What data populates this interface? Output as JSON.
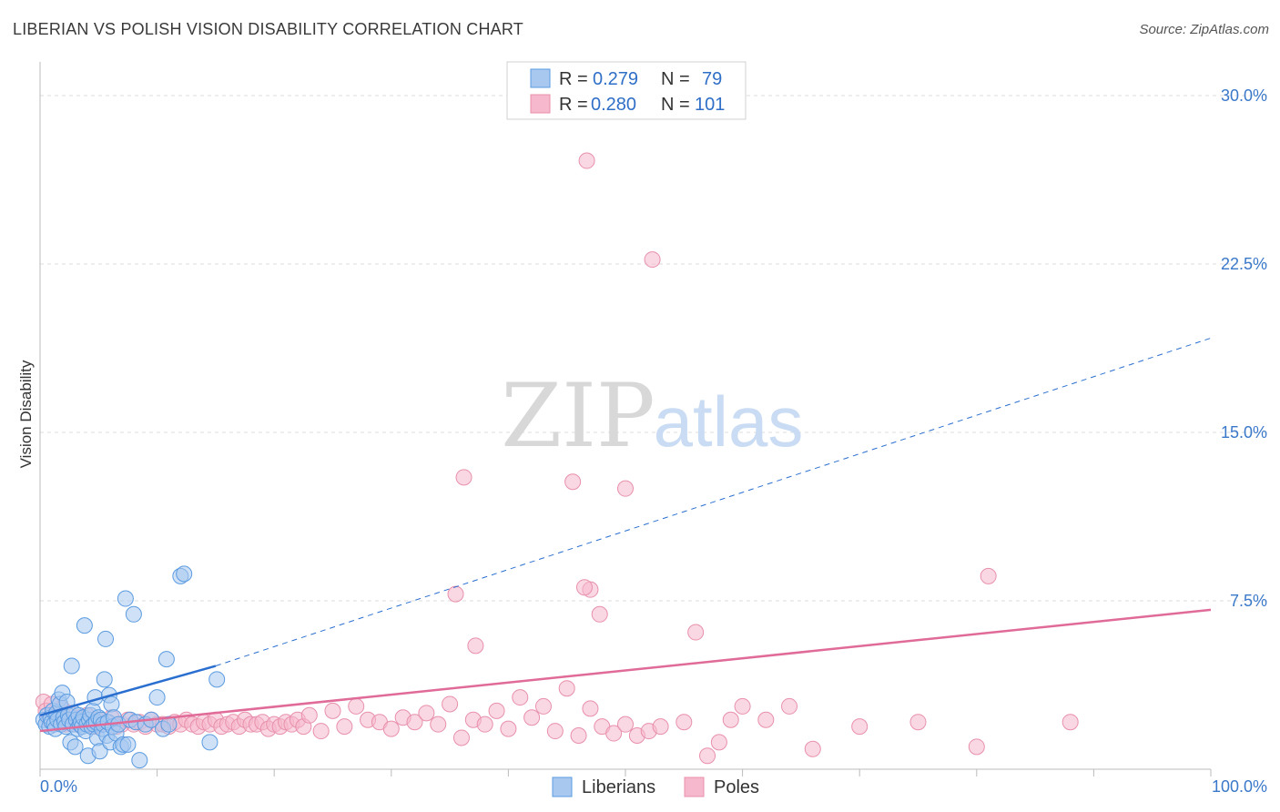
{
  "title": "LIBERIAN VS POLISH VISION DISABILITY CORRELATION CHART",
  "source": "Source: ZipAtlas.com",
  "watermark": {
    "zip": "ZIP",
    "atlas": "atlas"
  },
  "colors": {
    "liberians_fill": "#a8c8f0",
    "liberians_stroke": "#5b9be0",
    "liberians_line": "#2a6fd0",
    "poles_fill": "#f6b8cc",
    "poles_stroke": "#e890ab",
    "poles_line": "#e06a98",
    "grid": "#dddddd",
    "tick_text": "#3a78c9"
  },
  "legend": {
    "r_label": "R =",
    "n_label": "N =",
    "liberians": {
      "r": "0.279",
      "n": "79"
    },
    "poles": {
      "r": "0.280",
      "n": "101"
    }
  },
  "chart_data": {
    "type": "scatter",
    "title": "LIBERIAN VS POLISH VISION DISABILITY CORRELATION CHART",
    "xlabel": "",
    "ylabel": "Vision Disability",
    "xlim": [
      0,
      100
    ],
    "ylim": [
      0,
      31.5
    ],
    "x_tick_labels": [
      "0.0%",
      "100.0%"
    ],
    "y_ticks": [
      7.5,
      15.0,
      22.5,
      30.0
    ],
    "y_tick_labels": [
      "7.5%",
      "15.0%",
      "22.5%",
      "30.0%"
    ],
    "grid": true,
    "series": [
      {
        "name": "Liberians",
        "r": 0.279,
        "n": 79,
        "trend": {
          "x0": 0,
          "y0": 2.4,
          "x1": 15,
          "y1": 4.6,
          "dashed_to_x": 100,
          "dashed_to_y": 19.2
        },
        "points": [
          [
            0.3,
            2.2
          ],
          [
            0.5,
            2.0
          ],
          [
            0.6,
            2.4
          ],
          [
            0.8,
            1.9
          ],
          [
            0.9,
            2.3
          ],
          [
            1.0,
            2.1
          ],
          [
            1.1,
            2.6
          ],
          [
            1.2,
            2.0
          ],
          [
            1.3,
            1.8
          ],
          [
            1.4,
            2.5
          ],
          [
            1.5,
            2.2
          ],
          [
            1.6,
            3.1
          ],
          [
            1.7,
            2.9
          ],
          [
            1.8,
            2.0
          ],
          [
            1.9,
            3.4
          ],
          [
            2.0,
            2.3
          ],
          [
            2.1,
            2.1
          ],
          [
            2.2,
            1.9
          ],
          [
            2.3,
            3.0
          ],
          [
            2.4,
            2.4
          ],
          [
            2.5,
            2.2
          ],
          [
            2.6,
            1.2
          ],
          [
            2.7,
            4.6
          ],
          [
            2.8,
            2.0
          ],
          [
            2.9,
            2.5
          ],
          [
            3.0,
            1.0
          ],
          [
            3.1,
            2.2
          ],
          [
            3.2,
            1.8
          ],
          [
            3.3,
            2.4
          ],
          [
            3.4,
            2.0
          ],
          [
            3.5,
            2.1
          ],
          [
            3.6,
            1.9
          ],
          [
            3.7,
            2.3
          ],
          [
            3.8,
            6.4
          ],
          [
            3.9,
            1.7
          ],
          [
            4.0,
            2.0
          ],
          [
            4.1,
            0.6
          ],
          [
            4.2,
            2.2
          ],
          [
            4.3,
            2.4
          ],
          [
            4.4,
            1.9
          ],
          [
            4.5,
            2.6
          ],
          [
            4.6,
            2.0
          ],
          [
            4.7,
            3.2
          ],
          [
            4.8,
            2.1
          ],
          [
            4.9,
            1.4
          ],
          [
            5.0,
            2.3
          ],
          [
            5.1,
            0.8
          ],
          [
            5.2,
            2.2
          ],
          [
            5.3,
            1.8
          ],
          [
            5.4,
            2.0
          ],
          [
            5.5,
            4.0
          ],
          [
            5.6,
            5.8
          ],
          [
            5.7,
            1.5
          ],
          [
            5.8,
            2.1
          ],
          [
            5.9,
            3.3
          ],
          [
            6.0,
            1.2
          ],
          [
            6.1,
            2.9
          ],
          [
            6.2,
            1.9
          ],
          [
            6.3,
            2.3
          ],
          [
            6.5,
            1.6
          ],
          [
            6.7,
            2.0
          ],
          [
            6.9,
            1.0
          ],
          [
            7.1,
            1.1
          ],
          [
            7.3,
            7.6
          ],
          [
            7.5,
            1.1
          ],
          [
            7.7,
            2.2
          ],
          [
            8.0,
            6.9
          ],
          [
            8.2,
            2.1
          ],
          [
            8.5,
            0.4
          ],
          [
            9.0,
            2.0
          ],
          [
            9.5,
            2.2
          ],
          [
            10.0,
            3.2
          ],
          [
            10.5,
            1.8
          ],
          [
            10.8,
            4.9
          ],
          [
            11.0,
            2.0
          ],
          [
            12.0,
            8.6
          ],
          [
            12.3,
            8.7
          ],
          [
            14.5,
            1.2
          ],
          [
            15.1,
            4.0
          ]
        ]
      },
      {
        "name": "Poles",
        "r": 0.28,
        "n": 101,
        "trend": {
          "x0": 0,
          "y0": 1.7,
          "x1": 100,
          "y1": 7.1
        },
        "points": [
          [
            0.3,
            3.0
          ],
          [
            0.5,
            2.6
          ],
          [
            0.8,
            2.2
          ],
          [
            1.0,
            2.9
          ],
          [
            1.3,
            2.4
          ],
          [
            1.6,
            2.1
          ],
          [
            1.9,
            2.7
          ],
          [
            2.2,
            2.0
          ],
          [
            2.5,
            2.5
          ],
          [
            2.8,
            2.2
          ],
          [
            3.1,
            2.0
          ],
          [
            3.4,
            2.3
          ],
          [
            3.7,
            2.1
          ],
          [
            4.0,
            2.4
          ],
          [
            4.3,
            2.0
          ],
          [
            4.6,
            1.9
          ],
          [
            4.9,
            2.2
          ],
          [
            5.3,
            2.0
          ],
          [
            5.7,
            2.1
          ],
          [
            6.1,
            2.3
          ],
          [
            6.5,
            1.9
          ],
          [
            7.0,
            2.0
          ],
          [
            7.5,
            2.2
          ],
          [
            8.0,
            2.0
          ],
          [
            8.5,
            2.1
          ],
          [
            9.0,
            1.9
          ],
          [
            9.5,
            2.2
          ],
          [
            10.0,
            2.0
          ],
          [
            10.5,
            2.0
          ],
          [
            11.0,
            1.9
          ],
          [
            11.5,
            2.1
          ],
          [
            12.0,
            2.0
          ],
          [
            12.5,
            2.2
          ],
          [
            13.0,
            2.0
          ],
          [
            13.5,
            1.9
          ],
          [
            14.0,
            2.1
          ],
          [
            14.5,
            2.0
          ],
          [
            15.0,
            2.2
          ],
          [
            15.5,
            1.9
          ],
          [
            16.0,
            2.0
          ],
          [
            16.5,
            2.1
          ],
          [
            17.0,
            1.9
          ],
          [
            17.5,
            2.2
          ],
          [
            18.0,
            2.0
          ],
          [
            18.5,
            2.0
          ],
          [
            19.0,
            2.1
          ],
          [
            19.5,
            1.8
          ],
          [
            20.0,
            2.0
          ],
          [
            20.5,
            1.9
          ],
          [
            21.0,
            2.1
          ],
          [
            21.5,
            2.0
          ],
          [
            22.0,
            2.2
          ],
          [
            22.5,
            1.9
          ],
          [
            23.0,
            2.4
          ],
          [
            24.0,
            1.7
          ],
          [
            25.0,
            2.6
          ],
          [
            26.0,
            1.9
          ],
          [
            27.0,
            2.8
          ],
          [
            28.0,
            2.2
          ],
          [
            29.0,
            2.1
          ],
          [
            30.0,
            1.8
          ],
          [
            31.0,
            2.3
          ],
          [
            32.0,
            2.1
          ],
          [
            33.0,
            2.5
          ],
          [
            34.0,
            2.0
          ],
          [
            35.0,
            2.9
          ],
          [
            36.0,
            1.4
          ],
          [
            37.0,
            2.2
          ],
          [
            38.0,
            2.0
          ],
          [
            39.0,
            2.6
          ],
          [
            40.0,
            1.8
          ],
          [
            41.0,
            3.2
          ],
          [
            42.0,
            2.3
          ],
          [
            43.0,
            2.8
          ],
          [
            44.0,
            1.7
          ],
          [
            45.0,
            3.6
          ],
          [
            46.0,
            1.5
          ],
          [
            47.0,
            2.7
          ],
          [
            48.0,
            1.9
          ],
          [
            49.0,
            1.6
          ],
          [
            50.0,
            2.0
          ],
          [
            51.0,
            1.5
          ],
          [
            52.0,
            1.7
          ],
          [
            53.0,
            1.9
          ],
          [
            55.0,
            2.1
          ],
          [
            57.0,
            0.6
          ],
          [
            58.0,
            1.2
          ],
          [
            59.0,
            2.2
          ],
          [
            60.0,
            2.8
          ],
          [
            62.0,
            2.2
          ],
          [
            64.0,
            2.8
          ],
          [
            66.0,
            0.9
          ],
          [
            70.0,
            1.9
          ],
          [
            75.0,
            2.1
          ],
          [
            80.0,
            1.0
          ],
          [
            88.0,
            2.1
          ],
          [
            81.0,
            8.6
          ],
          [
            45.5,
            12.8
          ],
          [
            47.0,
            8.0
          ],
          [
            35.5,
            7.8
          ],
          [
            56.0,
            6.1
          ]
        ],
        "outliers": [
          [
            46.7,
            27.1
          ],
          [
            52.3,
            22.7
          ],
          [
            50.0,
            12.5
          ],
          [
            36.2,
            13.0
          ],
          [
            46.5,
            8.1
          ],
          [
            37.2,
            5.5
          ],
          [
            47.8,
            6.9
          ]
        ]
      }
    ]
  },
  "bottom_legend": {
    "liberians": "Liberians",
    "poles": "Poles"
  }
}
